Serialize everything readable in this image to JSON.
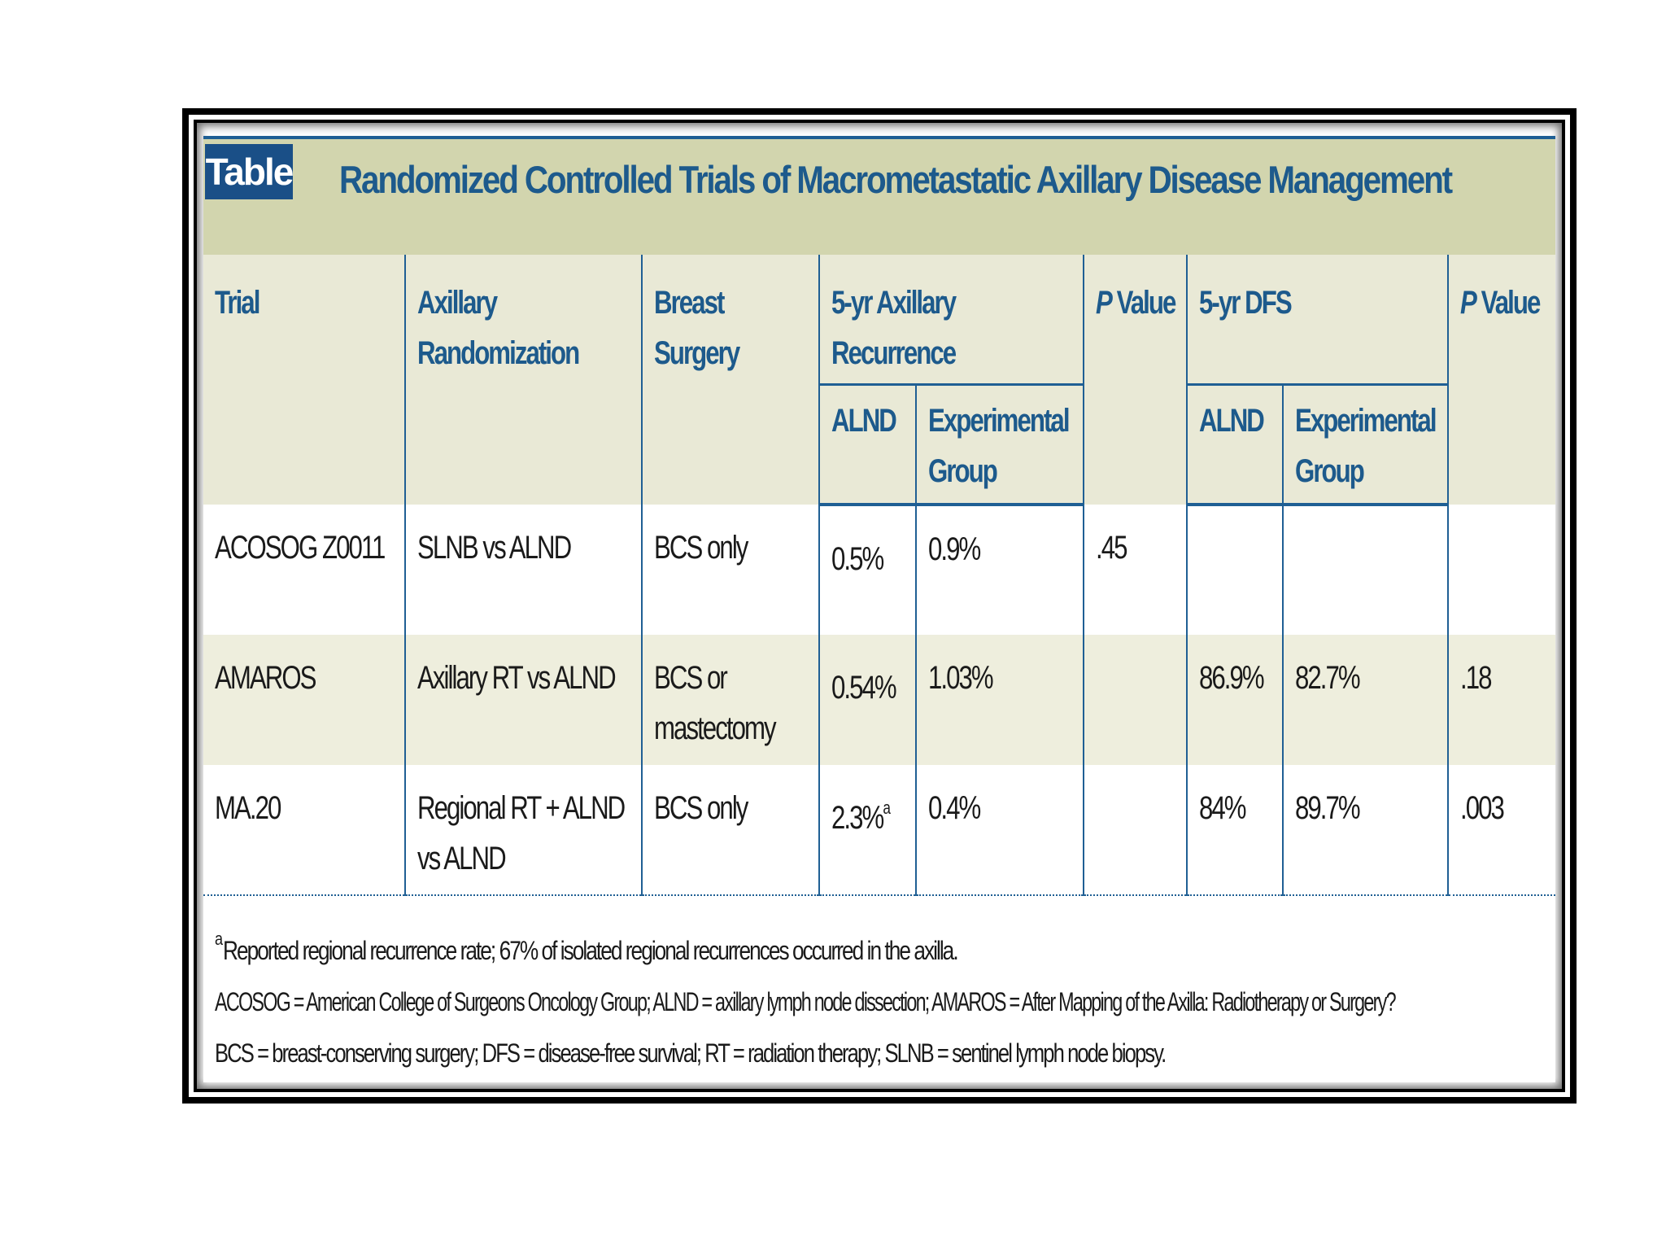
{
  "table": {
    "tag": "Table",
    "title": "Randomized Controlled Trials of Macrometastatic Axillary Disease Management",
    "headers": {
      "trial": "Trial",
      "axillary_randomization": [
        "Axillary",
        "Randomization"
      ],
      "breast_surgery": [
        "Breast",
        "Surgery"
      ],
      "axillary_recurrence": [
        "5-yr Axillary",
        "Recurrence"
      ],
      "p_value_1": [
        "P",
        " Value"
      ],
      "dfs": "5-yr DFS",
      "p_value_2": [
        "P",
        " Value"
      ],
      "alnd_1": "ALND",
      "experimental_1": [
        "Experimental",
        "Group"
      ],
      "alnd_2": "ALND",
      "experimental_2": [
        "Experimental",
        "Group"
      ]
    },
    "rows": [
      {
        "trial": "ACOSOG Z0011",
        "randomization": [
          "SLNB vs ALND",
          ""
        ],
        "surgery": [
          "BCS only",
          ""
        ],
        "rec_alnd": "0.5%",
        "rec_alnd_sup": "",
        "rec_exp": "0.9%",
        "p1": ".45",
        "dfs_alnd": "",
        "dfs_exp": "",
        "p2": ""
      },
      {
        "trial": "AMAROS",
        "randomization": [
          "Axillary RT vs ALND",
          ""
        ],
        "surgery": [
          "BCS or",
          "mastectomy"
        ],
        "rec_alnd": "0.54%",
        "rec_alnd_sup": "",
        "rec_exp": "1.03%",
        "p1": "",
        "dfs_alnd": "86.9%",
        "dfs_exp": "82.7%",
        "p2": ".18"
      },
      {
        "trial": "MA.20",
        "randomization": [
          "Regional RT + ALND",
          "vs ALND"
        ],
        "surgery": [
          "BCS only",
          ""
        ],
        "rec_alnd": "2.3%",
        "rec_alnd_sup": "a",
        "rec_exp": "0.4%",
        "p1": "",
        "dfs_alnd": "84%",
        "dfs_exp": "89.7%",
        "p2": ".003"
      }
    ],
    "footnotes": {
      "marker": "a",
      "line1": "Reported regional recurrence rate; 67% of isolated regional recurrences occurred in the axilla.",
      "line2": "ACOSOG = American College of Surgeons Oncology Group; ALND = axillary lymph node dissection; AMAROS = After Mapping of the Axilla: Radiotherapy or Surgery?",
      "line3": "BCS = breast-conserving surgery; DFS = disease-free survival; RT = radiation therapy; SLNB = sentinel lymph node biopsy."
    }
  },
  "colors": {
    "title_band": "#d2d5ae",
    "header_band": "#e9e9d6",
    "shaded_row": "#eeeedd",
    "accent_blue": "#1d5a8c",
    "rule_blue": "#1f5f94"
  }
}
